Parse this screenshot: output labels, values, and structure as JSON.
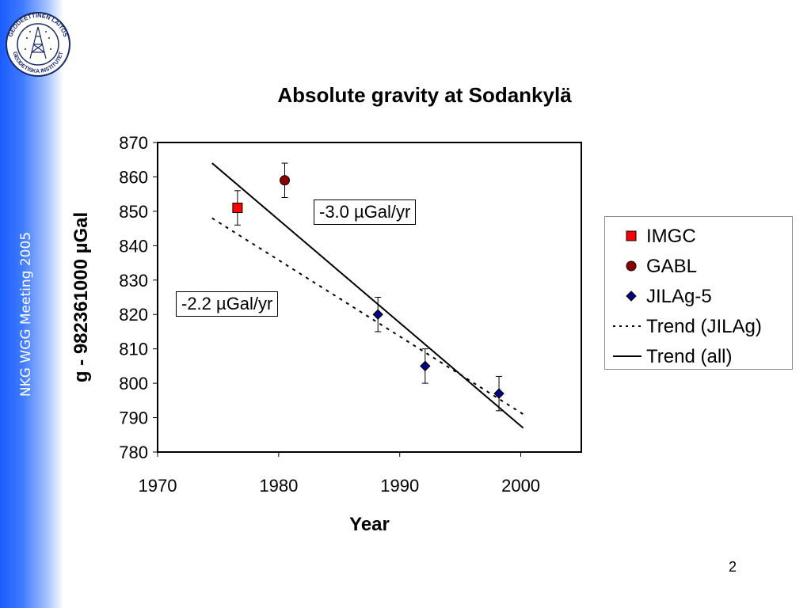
{
  "sidebar": {
    "text": "NKG WGG Meeting 2005"
  },
  "logo": {
    "ring_text_top": "GEODEETTINEN LAITOS",
    "ring_text_bottom": "GEODETISKA INSTITUTET"
  },
  "slide": {
    "page_number": "2"
  },
  "colors": {
    "sidebar_blue": "#1a5cff",
    "imgc": "#ff0000",
    "gabl": "#8b0000",
    "jila": "#000080"
  },
  "chart_data": {
    "type": "scatter",
    "title": "Absolute gravity at Sodankylä",
    "xlabel": "Year",
    "ylabel": "g - 982361000 µGal",
    "xlim": [
      1970,
      2005
    ],
    "ylim": [
      780,
      870
    ],
    "x_ticks": [
      1970,
      1980,
      1990,
      2000
    ],
    "y_ticks": [
      780,
      790,
      800,
      810,
      820,
      830,
      840,
      850,
      860,
      870
    ],
    "grid": false,
    "legend_position": "right",
    "series": [
      {
        "name": "IMGC",
        "marker": "square",
        "color": "#ff0000",
        "points": [
          {
            "x": 1976.6,
            "y": 851,
            "err": 5
          }
        ]
      },
      {
        "name": "GABL",
        "marker": "circle",
        "color": "#8b0000",
        "points": [
          {
            "x": 1980.5,
            "y": 859,
            "err": 5
          }
        ]
      },
      {
        "name": "JILAg-5",
        "marker": "diamond",
        "color": "#000080",
        "points": [
          {
            "x": 1988.2,
            "y": 820,
            "err": 5
          },
          {
            "x": 1992.1,
            "y": 805,
            "err": 5
          },
          {
            "x": 1998.2,
            "y": 797,
            "err": 5
          }
        ]
      },
      {
        "name": "Trend (JILAg)",
        "type": "line",
        "style": "dotted",
        "color": "#000000",
        "points": [
          {
            "x": 1974.5,
            "y": 848
          },
          {
            "x": 2000.2,
            "y": 791
          }
        ]
      },
      {
        "name": "Trend (all)",
        "type": "line",
        "style": "solid",
        "color": "#000000",
        "points": [
          {
            "x": 1974.5,
            "y": 864
          },
          {
            "x": 2000.2,
            "y": 787
          }
        ]
      }
    ],
    "annotations": [
      {
        "text": "-3.0 µGal/yr",
        "refers_to": "Trend (all)"
      },
      {
        "text": "-2.2 µGal/yr",
        "refers_to": "Trend (JILAg)"
      }
    ]
  }
}
